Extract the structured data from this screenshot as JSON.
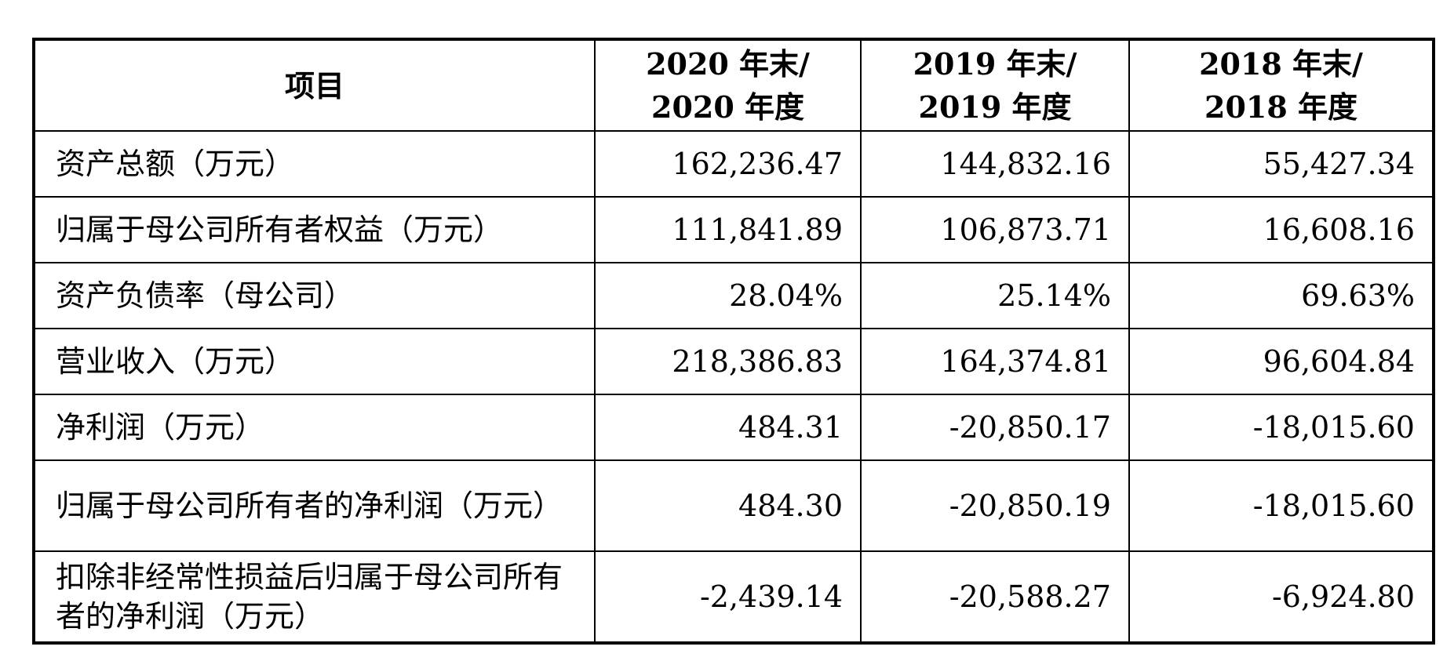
{
  "table": {
    "header": {
      "item": "项目",
      "col_2020": [
        "2020 年末/",
        "2020 年度"
      ],
      "col_2019": [
        "2019 年末/",
        "2019 年度"
      ],
      "col_2018": [
        "2018 年末/",
        "2018 年度"
      ]
    },
    "rows": [
      {
        "label": "资产总额（万元）",
        "v2020": "162,236.47",
        "v2019": "144,832.16",
        "v2018": "55,427.34"
      },
      {
        "label": "归属于母公司所有者权益（万元）",
        "v2020": "111,841.89",
        "v2019": "106,873.71",
        "v2018": "16,608.16"
      },
      {
        "label": "资产负债率（母公司）",
        "v2020": "28.04%",
        "v2019": "25.14%",
        "v2018": "69.63%"
      },
      {
        "label": "营业收入（万元）",
        "v2020": "218,386.83",
        "v2019": "164,374.81",
        "v2018": "96,604.84"
      },
      {
        "label": "净利润（万元）",
        "v2020": "484.31",
        "v2019": "-20,850.17",
        "v2018": "-18,015.60"
      },
      {
        "label": "归属于母公司所有者的净利润（万元）",
        "v2020": "484.30",
        "v2019": "-20,850.19",
        "v2018": "-18,015.60"
      },
      {
        "label": "扣除非经常性损益后归属于母公司所有者的净利润（万元）",
        "v2020": "-2,439.14",
        "v2019": "-20,588.27",
        "v2018": "-6,924.80"
      }
    ]
  }
}
